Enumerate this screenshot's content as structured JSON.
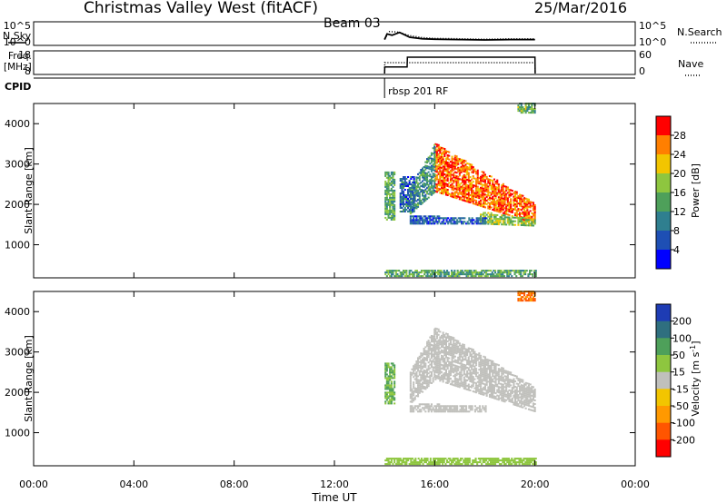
{
  "header": {
    "station": "Christmas Valley West (fitACF)",
    "beam": "Beam 03",
    "date": "25/Mar/2016"
  },
  "time_axis": {
    "label": "Time UT",
    "ticks": [
      "00:00",
      "04:00",
      "08:00",
      "12:00",
      "16:00",
      "20:00",
      "00:00"
    ]
  },
  "chart_data": [
    {
      "type": "line",
      "panel": "noise",
      "left_label": "N.Sky",
      "right_label": "N.Search",
      "left_ticks": [
        "10^5",
        "10^0"
      ],
      "right_ticks": [
        "10^5",
        "10^0"
      ],
      "series": [
        {
          "name": "N.Sky",
          "style": "solid",
          "x": [
            14.0,
            14.1,
            14.3,
            14.6,
            14.8,
            15.0,
            15.5,
            16.0,
            17.0,
            18.0,
            19.0,
            20.0
          ],
          "y": [
            1.0,
            2.4,
            2.1,
            2.8,
            2.2,
            1.6,
            1.2,
            1.1,
            1.0,
            0.9,
            1.0,
            1.0
          ]
        },
        {
          "name": "N.Search",
          "style": "dotted",
          "x": [
            14.0,
            14.2,
            14.5,
            15.0,
            15.5,
            16.0,
            17.0,
            18.0,
            19.0,
            20.0
          ],
          "y": [
            1.2,
            3.0,
            2.9,
            2.0,
            1.5,
            1.3,
            1.2,
            1.1,
            1.2,
            1.2
          ]
        }
      ]
    },
    {
      "type": "line",
      "panel": "frequency",
      "left_label": "Freq.",
      "left_unit": "[MHz]",
      "right_label": "Nave",
      "left_ticks": [
        8,
        18
      ],
      "right_ticks": [
        0,
        60
      ],
      "series": [
        {
          "name": "Freq.",
          "style": "solid",
          "x": [
            14.0,
            14.01,
            14.9,
            14.91,
            20.0,
            20.01
          ],
          "y": [
            8.0,
            11.0,
            11.0,
            15.5,
            15.5,
            8.0
          ]
        },
        {
          "name": "Nave",
          "style": "dotted",
          "x": [
            14.0,
            14.01,
            20.0,
            20.01
          ],
          "y": [
            0,
            30,
            30,
            0
          ]
        }
      ]
    },
    {
      "type": "text",
      "panel": "cpid",
      "left_label": "CPID",
      "annotation": "rbsp 201 RF",
      "start": 14.0
    },
    {
      "type": "heatmap",
      "panel": "power",
      "ylabel": "Slant Range [km]",
      "yticks": [
        1000,
        2000,
        3000,
        4000
      ],
      "ylim": [
        180,
        4500
      ],
      "xlim": [
        0,
        24
      ],
      "colorbar": {
        "label": "Power [dB]",
        "ticks": [
          4,
          8,
          12,
          16,
          20,
          24,
          28
        ],
        "range": [
          0,
          32
        ],
        "colors": [
          "#0000ff",
          "#1e4fb4",
          "#2f7f8f",
          "#4ea05a",
          "#8ec63f",
          "#f2c500",
          "#ff7f00",
          "#ff0000"
        ]
      },
      "regions": [
        {
          "t0": 16.0,
          "t1": 20.0,
          "r0": [
            2300,
            1500
          ],
          "r1": [
            3500,
            2000
          ],
          "value": 27
        },
        {
          "t0": 15.0,
          "t1": 16.0,
          "r0": [
            1750,
            2300
          ],
          "r1": [
            2400,
            3500
          ],
          "value": 12
        },
        {
          "t0": 17.8,
          "t1": 20.0,
          "r0": [
            1500,
            1450
          ],
          "r1": [
            1800,
            1600
          ],
          "value": 17
        },
        {
          "t0": 14.0,
          "t1": 14.4,
          "r0": [
            1600,
            1600
          ],
          "r1": [
            2800,
            2800
          ],
          "value": 14
        },
        {
          "t0": 14.6,
          "t1": 15.2,
          "r0": [
            1800,
            1800
          ],
          "r1": [
            2700,
            2700
          ],
          "value": 8
        },
        {
          "t0": 15.0,
          "t1": 18.0,
          "r0": [
            1500,
            1500
          ],
          "r1": [
            1700,
            1650
          ],
          "value": 7
        },
        {
          "t0": 19.3,
          "t1": 20.0,
          "r0": [
            4250,
            4250
          ],
          "r1": [
            4480,
            4480
          ],
          "value": 16
        },
        {
          "t0": 14.0,
          "t1": 20.0,
          "r0": [
            200,
            200
          ],
          "r1": [
            380,
            380
          ],
          "value": 14
        }
      ]
    },
    {
      "type": "heatmap",
      "panel": "velocity",
      "ylabel": "Slant Range [km]",
      "yticks": [
        1000,
        2000,
        3000,
        4000
      ],
      "ylim": [
        180,
        4500
      ],
      "xlim": [
        0,
        24
      ],
      "colorbar": {
        "label": "Velocity [m s^-1]",
        "ticks": [
          200,
          100,
          50,
          15,
          -15,
          -50,
          -100,
          -200
        ],
        "colors": [
          "#1e3cb4",
          "#2f6f7f",
          "#4ea05a",
          "#8ec63f",
          "#c0c0bc",
          "#f2c500",
          "#ff9900",
          "#ff5500",
          "#ff0000"
        ]
      },
      "regions": [
        {
          "t0": 16.0,
          "t1": 20.0,
          "r0": [
            2300,
            1500
          ],
          "r1": [
            3600,
            2100
          ],
          "value": 0
        },
        {
          "t0": 15.0,
          "t1": 16.0,
          "r0": [
            1700,
            2300
          ],
          "r1": [
            2500,
            3600
          ],
          "value": 0
        },
        {
          "t0": 14.0,
          "t1": 14.4,
          "r0": [
            1700,
            1700
          ],
          "r1": [
            2700,
            2700
          ],
          "value": 50
        },
        {
          "t0": 15.0,
          "t1": 18.0,
          "r0": [
            1500,
            1500
          ],
          "r1": [
            1700,
            1650
          ],
          "value": 0
        },
        {
          "t0": 19.3,
          "t1": 20.0,
          "r0": [
            4250,
            4250
          ],
          "r1": [
            4480,
            4480
          ],
          "value": -100
        },
        {
          "t0": 14.0,
          "t1": 20.0,
          "r0": [
            200,
            200
          ],
          "r1": [
            380,
            380
          ],
          "value": 30
        }
      ]
    }
  ]
}
